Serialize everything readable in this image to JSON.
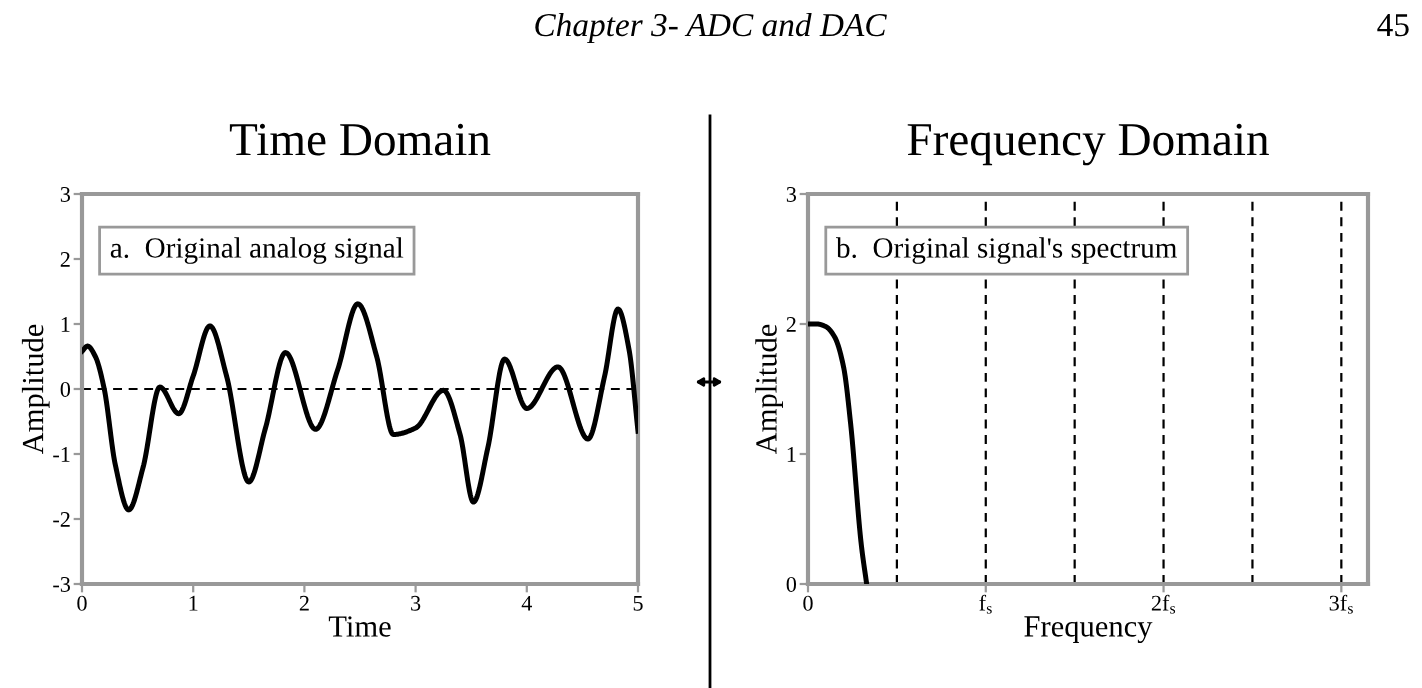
{
  "chart_data": [
    {
      "type": "line",
      "title": "Time Domain",
      "xlabel": "Time",
      "ylabel": "Amplitude",
      "annotations": [
        "Chapter 3- ADC and DAC",
        "45",
        "a.  Original analog signal"
      ],
      "x": [
        0,
        0.05,
        0.12,
        0.2,
        0.3,
        0.42,
        0.55,
        0.7,
        0.87,
        1.0,
        1.15,
        1.3,
        1.5,
        1.65,
        1.83,
        2.1,
        2.3,
        2.48,
        2.65,
        2.8,
        3.0,
        3.25,
        3.4,
        3.52,
        3.65,
        3.8,
        4.0,
        4.28,
        4.55,
        4.7,
        4.82,
        4.92,
        5.0
      ],
      "series": [
        {
          "color": "#000000",
          "values": [
            0.58,
            0.66,
            0.5,
            0.0,
            -1.17,
            -1.86,
            -1.2,
            0.03,
            -0.38,
            0.2,
            0.97,
            0.2,
            -1.43,
            -0.6,
            0.56,
            -0.62,
            0.3,
            1.31,
            0.5,
            -0.7,
            -0.6,
            -0.02,
            -0.7,
            -1.74,
            -0.9,
            0.46,
            -0.3,
            0.34,
            -0.77,
            0.2,
            1.23,
            0.6,
            -0.65
          ]
        }
      ],
      "xlim": [
        0,
        5
      ],
      "ylim": [
        -3,
        3
      ],
      "xticks": [
        0,
        1,
        2,
        3,
        4,
        5
      ],
      "yticks": [
        -3,
        -2,
        -1,
        0,
        1,
        2,
        3
      ],
      "ref_lines": [
        {
          "axis": "y",
          "value": 0,
          "label": null,
          "color": "#000000",
          "line_style": "dashed"
        }
      ],
      "grid": false,
      "line_style": "solid",
      "marker": "none"
    },
    {
      "type": "line",
      "title": "Frequency Domain",
      "xlabel": "Frequency",
      "ylabel": "Amplitude",
      "annotations": [
        "b.  Original signal's spectrum"
      ],
      "x": [
        0,
        0.05,
        0.1,
        0.15,
        0.2,
        0.24,
        0.3,
        0.33
      ],
      "series": [
        {
          "color": "#000000",
          "values": [
            2,
            2,
            1.98,
            1.9,
            1.67,
            1.23,
            0.3,
            0
          ]
        }
      ],
      "xlim": [
        0,
        3.15
      ],
      "ylim": [
        0,
        3
      ],
      "xticks": [
        0,
        {
          "value": 1,
          "label": "f$_{s}$"
        },
        {
          "value": 2,
          "label": "2f$_{s}$"
        },
        {
          "value": 3,
          "label": "3f$_{s}$"
        }
      ],
      "yticks": [
        0,
        1,
        2,
        3
      ],
      "ref_lines": [
        {
          "axis": "x",
          "value": 0.5,
          "label": null,
          "color": "#000000",
          "line_style": "dashed"
        },
        {
          "axis": "x",
          "value": 1,
          "label": null,
          "color": "#000000",
          "line_style": "dashed"
        },
        {
          "axis": "x",
          "value": 1.5,
          "label": null,
          "color": "#000000",
          "line_style": "dashed"
        },
        {
          "axis": "x",
          "value": 2,
          "label": null,
          "color": "#000000",
          "line_style": "dashed"
        },
        {
          "axis": "x",
          "value": 2.5,
          "label": null,
          "color": "#000000",
          "line_style": "dashed"
        },
        {
          "axis": "x",
          "value": 3,
          "label": null,
          "color": "#000000",
          "line_style": "dashed"
        }
      ],
      "grid": false,
      "line_style": "solid",
      "marker": "none"
    }
  ]
}
